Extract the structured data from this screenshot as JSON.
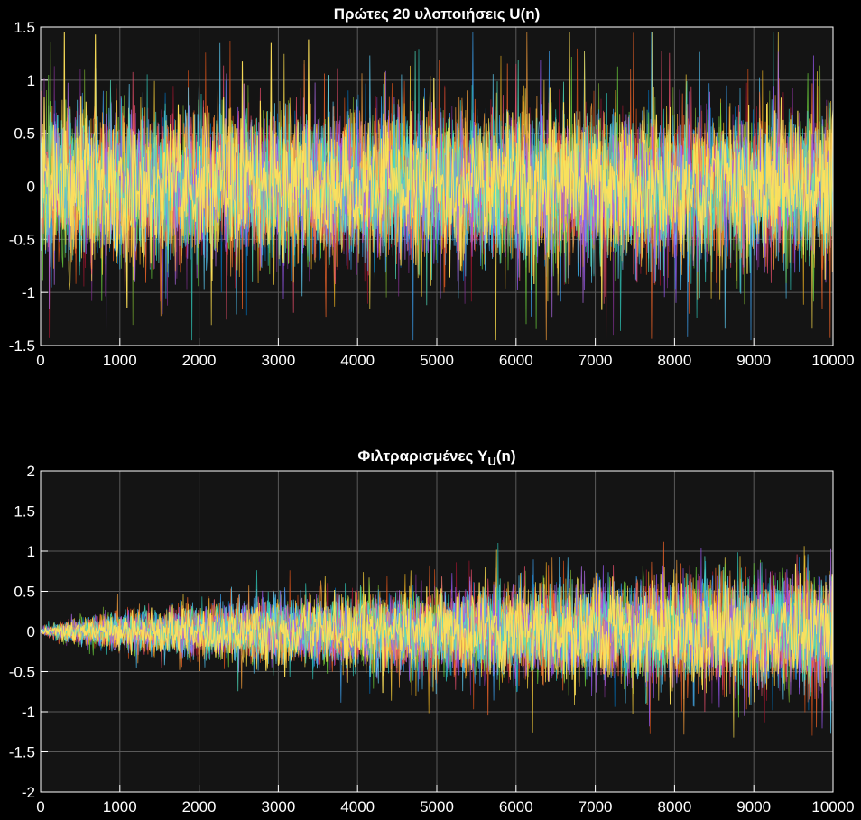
{
  "figure": {
    "background": "#000000",
    "axes_background": "#141414",
    "grid_color": "#5a5a5a",
    "axis_color": "#ffffff"
  },
  "chart_data": [
    {
      "type": "line",
      "title_main": "Πρώτες 20 υλοποιήσεις  U(n)",
      "title_sub": "",
      "title_tail": "",
      "xlim": [
        0,
        10000
      ],
      "ylim": [
        -1.5,
        1.5
      ],
      "x_ticks": [
        0,
        1000,
        2000,
        3000,
        4000,
        5000,
        6000,
        7000,
        8000,
        9000,
        10000
      ],
      "y_ticks": [
        1.5,
        1,
        0.5,
        0,
        -0.5,
        -1,
        -1.5
      ],
      "grid": true,
      "num_series": 20,
      "sample_count": 10000,
      "envelope": {
        "description_type": "uniform noise",
        "core_abs": 0.5,
        "outer_abs": 0.8,
        "peak_abs": 1.45
      }
    },
    {
      "type": "line",
      "title_main": "Φιλτραρισμένες    Y",
      "title_sub": "U",
      "title_tail": "(n)",
      "xlim": [
        0,
        10000
      ],
      "ylim": [
        -2,
        2
      ],
      "x_ticks": [
        0,
        1000,
        2000,
        3000,
        4000,
        5000,
        6000,
        7000,
        8000,
        9000,
        10000
      ],
      "y_ticks": [
        2,
        1.5,
        1,
        0.5,
        0,
        -0.5,
        -1,
        -1.5,
        -2
      ],
      "grid": true,
      "num_series": 20,
      "sample_count": 10000,
      "envelope": {
        "description_type": "growing",
        "start_abs": 0.0,
        "end_core_abs": 0.55,
        "end_outer_abs": 1.2,
        "peak_abs": 1.7
      }
    }
  ],
  "series_colors": [
    "#0072BD",
    "#D95319",
    "#EDB120",
    "#7E2F8E",
    "#77AC30",
    "#4DBEEE",
    "#A2142F",
    "#3CA0F0",
    "#FF6929",
    "#FFE04D",
    "#B76EF0",
    "#6ED63D",
    "#61D6FF",
    "#F0506E",
    "#2EC4B6",
    "#F79F3B",
    "#FFD43B",
    "#9B59F5",
    "#50E3C2",
    "#FFE15A"
  ]
}
